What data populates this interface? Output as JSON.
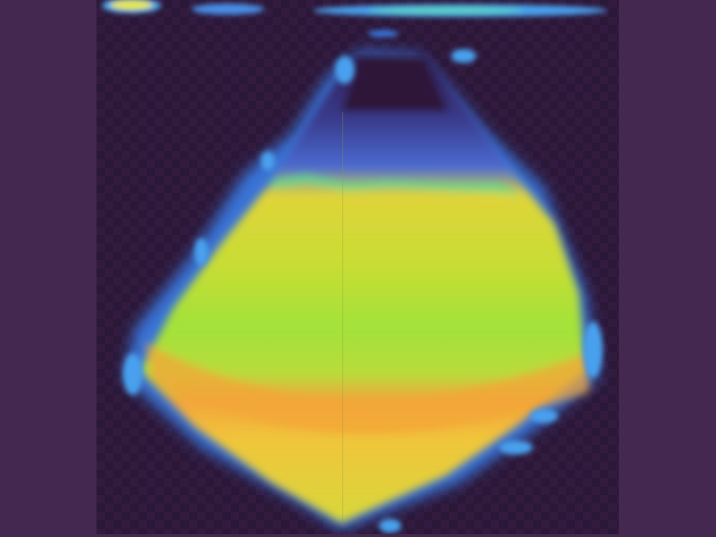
{
  "viewer": {
    "background_color": "#45284f",
    "canvas_color": "#2b1738"
  },
  "heatmap": {
    "colormap": [
      "#2b1738",
      "#3a54c8",
      "#4fa8f0",
      "#5ee08a",
      "#9be83a",
      "#e5d93a",
      "#f3a53a"
    ]
  }
}
